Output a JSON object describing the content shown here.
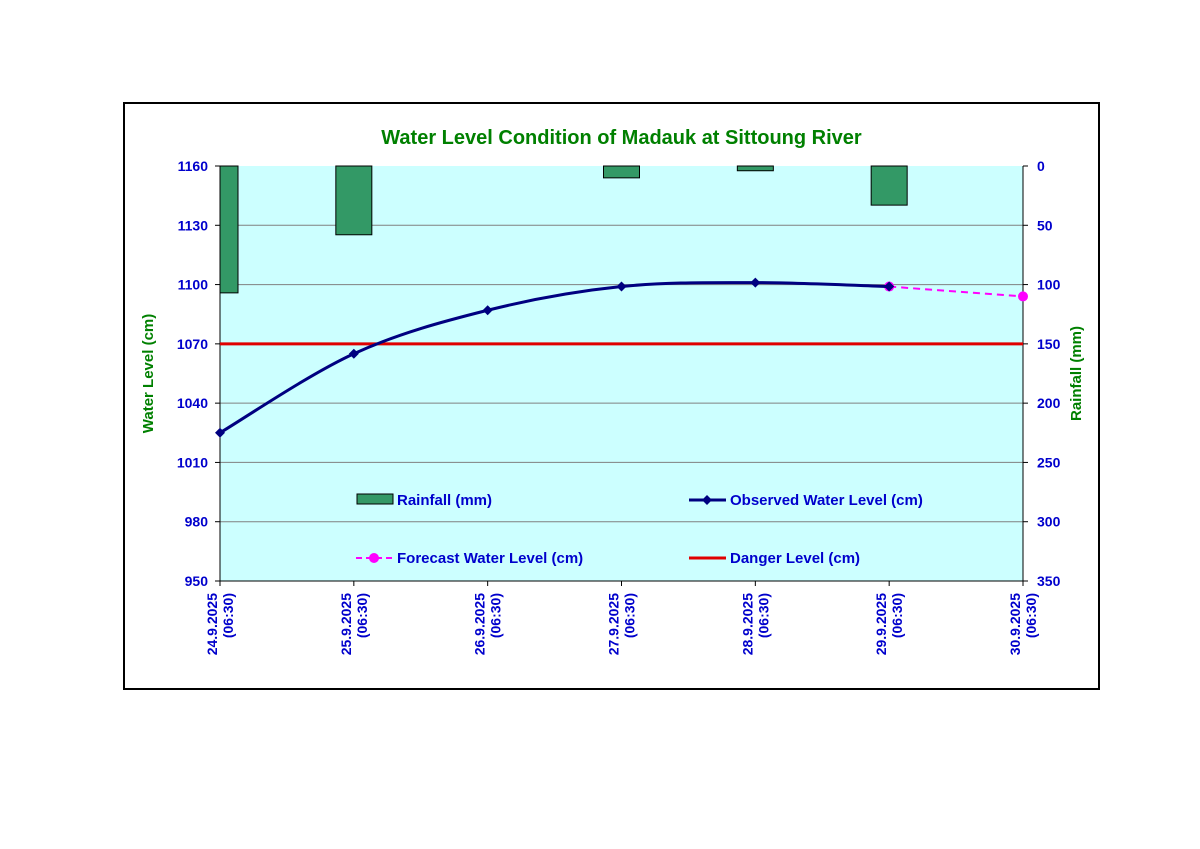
{
  "colors": {
    "plot_background": "#ccffff",
    "title": "#008000",
    "tick_label": "#0000cc",
    "axis_title": "#008000",
    "rainfall": "#339966",
    "observed": "#000080",
    "forecast": "#ff00ff",
    "danger": "#e00000",
    "gridline": "#808080"
  },
  "chart_data": {
    "type": "line",
    "title": "Water Level Condition of Madauk at Sittoung River",
    "categories": [
      "24.9.2025 (06:30)",
      "25.9.2025 (06:30)",
      "26.9.2025 (06:30)",
      "27.9.2025 (06:30)",
      "28.9.2025 (06:30)",
      "29.9.2025 (06:30)",
      "30.9.2025 (06:30)"
    ],
    "y_left": {
      "label": "Water Level (cm)",
      "range": [
        950,
        1160
      ],
      "ticks": [
        950,
        980,
        1010,
        1040,
        1070,
        1100,
        1130,
        1160
      ]
    },
    "y_right": {
      "label": "Rainfall (mm)",
      "range": [
        0,
        350
      ],
      "inverted": true,
      "ticks": [
        0,
        50,
        100,
        150,
        200,
        250,
        300,
        350
      ]
    },
    "series": [
      {
        "name": "Rainfall (mm)",
        "type": "bar",
        "axis": "right",
        "values": [
          107,
          58,
          null,
          10,
          4,
          33,
          null
        ]
      },
      {
        "name": "Observed Water Level (cm)",
        "type": "line",
        "axis": "left",
        "values": [
          1025,
          1065,
          1087,
          1099,
          1101,
          1099,
          null
        ]
      },
      {
        "name": "Forecast Water Level (cm)",
        "type": "line",
        "axis": "left",
        "style": "dashed",
        "values": [
          null,
          null,
          null,
          null,
          null,
          1099,
          1094
        ]
      },
      {
        "name": "Danger Level (cm)",
        "type": "hline",
        "axis": "left",
        "value": 1070
      }
    ],
    "legend": [
      "Rainfall (mm)",
      "Observed Water Level (cm)",
      "Forecast Water Level (cm)",
      "Danger Level (cm)"
    ]
  }
}
